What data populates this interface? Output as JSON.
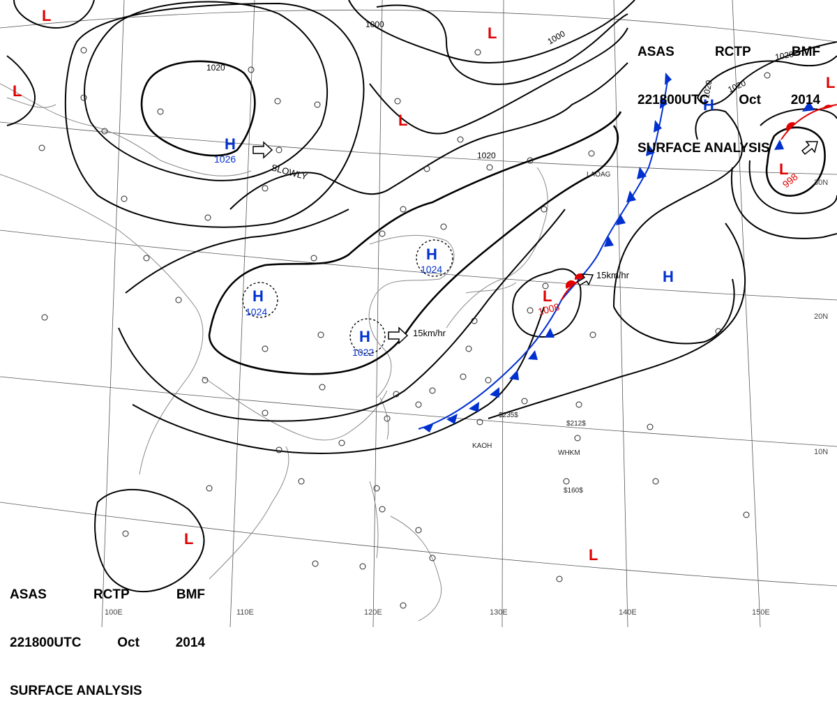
{
  "header": {
    "line1": [
      "ASAS",
      "RCTP",
      "BMF"
    ],
    "line2": [
      "221800UTC",
      "Oct",
      "2014"
    ],
    "line3": "SURFACE ANALYSIS"
  },
  "grid_labels": {
    "lon": [
      "100E",
      "110E",
      "120E",
      "130E",
      "140E",
      "150E"
    ],
    "lat": [
      "30N",
      "20N",
      "10N"
    ]
  },
  "isobar_labels": [
    "1020",
    "1000",
    "1000",
    "1020",
    "1020",
    "1020",
    "1020"
  ],
  "pressure_systems": [
    {
      "type": "H",
      "value": "1026",
      "movement": "SLOWLY"
    },
    {
      "type": "H",
      "value": "1024"
    },
    {
      "type": "H",
      "value": "1024"
    },
    {
      "type": "H",
      "value": "1022",
      "movement": "15km/hr"
    },
    {
      "type": "L",
      "value": "1008",
      "movement": "15km/hr"
    },
    {
      "type": "L",
      "value": "998"
    },
    {
      "type": "H"
    },
    {
      "type": "H"
    },
    {
      "type": "L"
    },
    {
      "type": "L"
    },
    {
      "type": "L"
    },
    {
      "type": "L"
    },
    {
      "type": "L"
    },
    {
      "type": "L"
    },
    {
      "type": "L"
    }
  ],
  "station_labels": [
    "LAOAG",
    "KAOH",
    "WHKM",
    "$235$",
    "$160$",
    "$212$"
  ],
  "colors": {
    "low": "#e00000",
    "high": "#0030d0",
    "cold_front": "#0030d0",
    "warm_front": "#e00000",
    "isobar": "#000000",
    "coastline": "#888888"
  }
}
